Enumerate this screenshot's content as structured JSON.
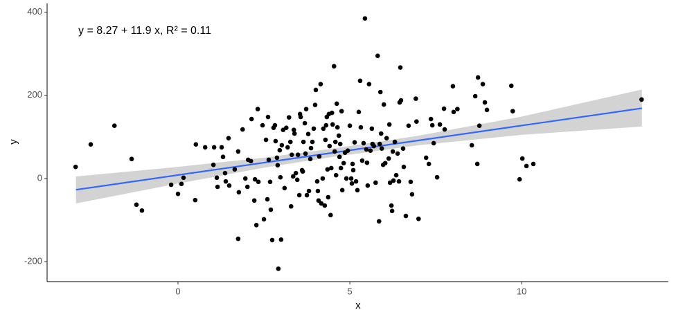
{
  "chart_data": {
    "type": "scatter",
    "annotation": "y = 8.27 + 11.9 x, R² = 0.11",
    "x_label": "x",
    "y_label": "y",
    "xlim": [
      -3.81,
      14.27
    ],
    "ylim": [
      -248,
      421
    ],
    "xticks": [
      0,
      5,
      10
    ],
    "yticks": [
      -200,
      0,
      200,
      400
    ],
    "point_color": "#000000",
    "series": [
      {
        "x": [
          -2.98,
          -2.54,
          -1.85,
          -1.35,
          -1.21,
          -1.05,
          -0.2,
          0,
          0.1,
          0.16,
          0.5,
          0.52,
          0.79,
          1.05,
          1.03,
          1.13,
          1.15,
          1.27,
          1.31,
          1.37,
          1.39,
          1.47,
          1.49,
          1.65,
          1.75,
          1.75,
          1.77,
          1.88,
          1.96,
          2.02,
          2.04,
          2.12,
          2.14,
          2.22,
          2.24,
          2.28,
          2.32,
          2.34,
          2.46,
          2.5,
          2.56,
          2.6,
          2.62,
          2.64,
          2.68,
          2.7,
          2.74,
          2.78,
          2.82,
          2.84,
          2.88,
          2.9,
          2.96,
          2.98,
          3.02,
          2.92,
          3.0,
          3.06,
          3.1,
          3.15,
          3.19,
          3.23,
          3.27,
          3.29,
          3.31,
          3.35,
          3.37,
          3.39,
          3.43,
          3.47,
          3.49,
          3.53,
          3.55,
          3.57,
          3.61,
          3.63,
          3.65,
          3.69,
          3.71,
          3.73,
          3.75,
          3.79,
          3.81,
          3.85,
          3.87,
          3.91,
          3.95,
          3.99,
          4.01,
          4.05,
          4.07,
          4.09,
          4.11,
          4.15,
          4.17,
          4.21,
          4.23,
          4.27,
          4.29,
          4.31,
          4.33,
          4.35,
          4.37,
          4.39,
          4.41,
          4.44,
          4.46,
          4.48,
          4.5,
          4.54,
          4.56,
          4.58,
          4.6,
          4.62,
          4.64,
          4.68,
          4.7,
          4.72,
          4.74,
          4.76,
          4.78,
          4.82,
          4.86,
          4.9,
          4.94,
          5.0,
          5.04,
          5.06,
          5.08,
          5.1,
          5.14,
          5.18,
          5.22,
          5.26,
          5.3,
          5.32,
          5.36,
          5.4,
          5.44,
          5.48,
          5.5,
          5.52,
          5.56,
          5.6,
          5.64,
          5.66,
          5.7,
          5.75,
          5.81,
          5.85,
          5.87,
          5.89,
          5.91,
          5.93,
          5.97,
          5.99,
          6.03,
          6.07,
          6.13,
          6.15,
          6.17,
          6.21,
          6.23,
          6.25,
          6.27,
          6.31,
          6.35,
          6.39,
          6.43,
          6.45,
          6.47,
          6.49,
          6.55,
          6.57,
          6.63,
          6.71,
          6.77,
          6.81,
          6.92,
          6.94,
          7.0,
          7.22,
          7.3,
          7.36,
          7.4,
          7.44,
          7.54,
          7.62,
          7.74,
          7.76,
          8.0,
          8.02,
          8.13,
          8.55,
          8.65,
          8.71,
          8.73,
          8.77,
          8.87,
          8.93,
          8.99,
          9.7,
          9.74,
          9.94,
          10.02,
          10.14,
          10.34,
          13.49
        ],
        "y": [
          28,
          82,
          127,
          47,
          -63,
          -77,
          -15,
          -37,
          -13,
          2,
          -52,
          82,
          75,
          75,
          33,
          2,
          -20,
          75,
          52,
          13,
          -7,
          97,
          -17,
          22,
          65,
          -145,
          -33,
          118,
          0,
          -20,
          45,
          42,
          143,
          -53,
          -2,
          -112,
          167,
          -8,
          128,
          -98,
          93,
          -50,
          148,
          45,
          -8,
          -75,
          -148,
          122,
          128,
          90,
          50,
          32,
          68,
          3,
          80,
          -217,
          -147,
          117,
          -23,
          122,
          75,
          147,
          88,
          -67,
          57,
          5,
          117,
          108,
          13,
          -3,
          57,
          -40,
          155,
          148,
          20,
          17,
          88,
          133,
          60,
          167,
          -40,
          107,
          -30,
          47,
          73,
          88,
          120,
          177,
          213,
          -7,
          -30,
          -53,
          53,
          227,
          -60,
          0,
          120,
          -65,
          93,
          128,
          148,
          22,
          -45,
          155,
          78,
          -88,
          25,
          158,
          130,
          270,
          65,
          88,
          8,
          180,
          123,
          103,
          52,
          83,
          25,
          162,
          -28,
          37,
          62,
          0,
          67,
          127,
          0,
          -12,
          35,
          20,
          87,
          -7,
          -28,
          160,
          235,
          123,
          43,
          85,
          385,
          70,
          38,
          -17,
          227,
          67,
          120,
          83,
          78,
          -10,
          295,
          -103,
          83,
          208,
          108,
          72,
          33,
          178,
          37,
          97,
          48,
          130,
          -10,
          -65,
          -78,
          65,
          -5,
          88,
          8,
          60,
          -7,
          183,
          267,
          188,
          72,
          28,
          -90,
          127,
          -8,
          -38,
          192,
          137,
          -97,
          50,
          35,
          143,
          128,
          85,
          3,
          130,
          168,
          118,
          222,
          160,
          167,
          80,
          198,
          35,
          243,
          127,
          227,
          183,
          165,
          223,
          162,
          -2,
          48,
          30,
          35,
          190
        ]
      }
    ],
    "fit": {
      "color": "#3366ff",
      "x": [
        -2.97,
        13.5
      ],
      "y": [
        -27,
        169
      ]
    },
    "band": {
      "color": "#d3d3d3",
      "x": [
        -2.97,
        0,
        2.5,
        4.5,
        7,
        10,
        13.5
      ],
      "lower": [
        -60,
        -12,
        26,
        52,
        80,
        105,
        125
      ],
      "upper": [
        5,
        28,
        50,
        72,
        103,
        149,
        214
      ]
    }
  }
}
